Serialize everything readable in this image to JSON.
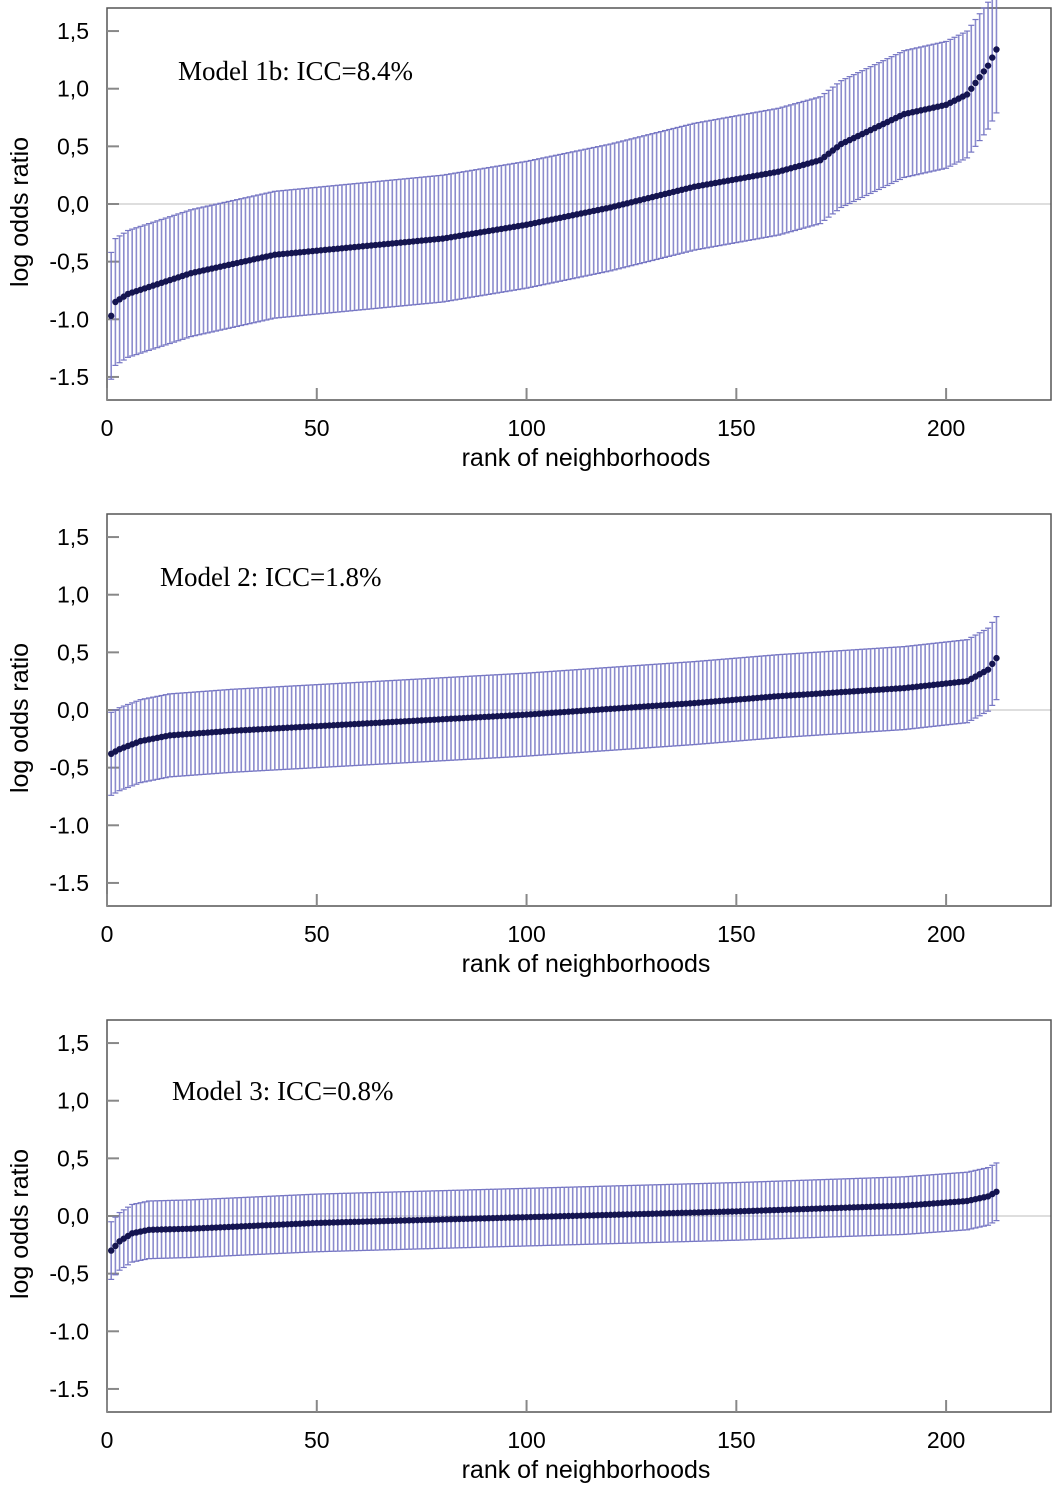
{
  "chart_data": [
    {
      "type": "scatter",
      "annotation": "Model 1b: ICC=8.4%",
      "xlabel": "rank of neighborhoods",
      "ylabel": "log odds ratio",
      "xlim": [
        0,
        225
      ],
      "ylim": [
        -1.7,
        1.7
      ],
      "xticks": [
        0,
        50,
        100,
        150,
        200
      ],
      "xtick_labels": [
        "0",
        "50",
        "100",
        "150",
        "200"
      ],
      "yticks": [
        1.5,
        1.0,
        0.5,
        0.0,
        -0.5,
        -1.0,
        -1.5
      ],
      "ytick_labels": [
        "1,5",
        "1,0",
        "0,5",
        "0,0",
        "-0,5",
        "-1.0",
        "-1.5"
      ],
      "n_points": 212,
      "reference_line": 0,
      "error_bar_halfwidth": 0.55,
      "rank_anchors": [
        1,
        2,
        5,
        10,
        20,
        40,
        60,
        80,
        100,
        120,
        140,
        160,
        170,
        175,
        190,
        200,
        205,
        210,
        212
      ],
      "estimate_anchors": [
        -0.97,
        -0.85,
        -0.78,
        -0.72,
        -0.6,
        -0.44,
        -0.37,
        -0.3,
        -0.18,
        -0.03,
        0.15,
        0.28,
        0.38,
        0.52,
        0.78,
        0.86,
        0.95,
        1.2,
        1.34
      ],
      "marker_color": "#141450",
      "error_bar_color": "#7777c4"
    },
    {
      "type": "scatter",
      "annotation": "Model 2: ICC=1.8%",
      "xlabel": "rank of neighborhoods",
      "ylabel": "log odds ratio",
      "xlim": [
        0,
        225
      ],
      "ylim": [
        -1.7,
        1.7
      ],
      "xticks": [
        0,
        50,
        100,
        150,
        200
      ],
      "xtick_labels": [
        "0",
        "50",
        "100",
        "150",
        "200"
      ],
      "yticks": [
        1.5,
        1.0,
        0.5,
        0.0,
        -0.5,
        -1.0,
        -1.5
      ],
      "ytick_labels": [
        "1,5",
        "1,0",
        "0,5",
        "0,0",
        "-0,5",
        "-1.0",
        "-1.5"
      ],
      "n_points": 212,
      "reference_line": 0,
      "error_bar_halfwidth": 0.36,
      "rank_anchors": [
        1,
        3,
        8,
        15,
        30,
        60,
        100,
        140,
        160,
        190,
        205,
        210,
        212
      ],
      "estimate_anchors": [
        -0.38,
        -0.34,
        -0.27,
        -0.22,
        -0.18,
        -0.12,
        -0.04,
        0.06,
        0.12,
        0.19,
        0.25,
        0.35,
        0.45
      ],
      "marker_color": "#141450",
      "error_bar_color": "#7777c4"
    },
    {
      "type": "scatter",
      "annotation": "Model 3: ICC=0.8%",
      "xlabel": "rank of neighborhoods",
      "ylabel": "log odds ratio",
      "xlim": [
        0,
        225
      ],
      "ylim": [
        -1.7,
        1.7
      ],
      "xticks": [
        0,
        50,
        100,
        150,
        200
      ],
      "xtick_labels": [
        "0",
        "50",
        "100",
        "150",
        "200"
      ],
      "yticks": [
        1.5,
        1.0,
        0.5,
        0.0,
        -0.5,
        -1.0,
        -1.5
      ],
      "ytick_labels": [
        "1,5",
        "1,0",
        "0,5",
        "0,0",
        "-0,5",
        "-1.0",
        "-1.5"
      ],
      "n_points": 212,
      "reference_line": 0,
      "error_bar_halfwidth": 0.25,
      "rank_anchors": [
        1,
        3,
        6,
        10,
        20,
        50,
        100,
        150,
        190,
        205,
        210,
        212
      ],
      "estimate_anchors": [
        -0.3,
        -0.22,
        -0.15,
        -0.12,
        -0.11,
        -0.06,
        -0.01,
        0.04,
        0.09,
        0.13,
        0.17,
        0.21
      ],
      "marker_color": "#141450",
      "error_bar_color": "#7777c4"
    }
  ]
}
